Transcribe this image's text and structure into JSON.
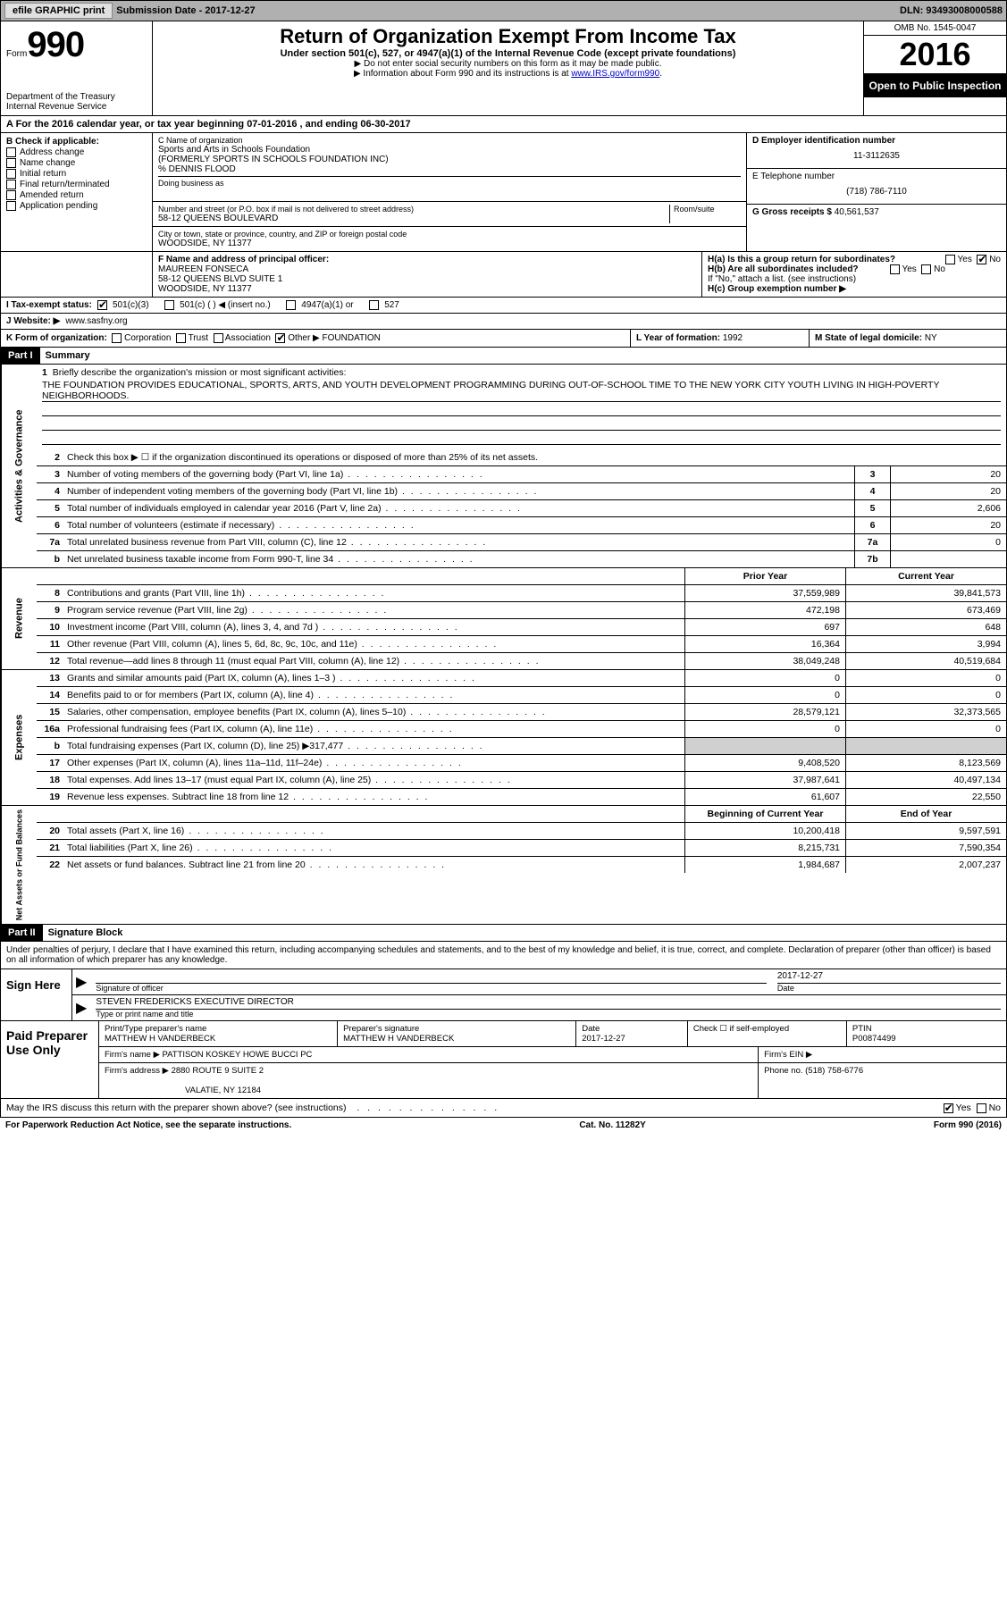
{
  "colors": {
    "topbar_bg": "#b0b0b0",
    "black": "#000000",
    "white": "#ffffff",
    "shade": "#d0d0d0",
    "link": "#0000cc"
  },
  "topbar": {
    "efile": "efile GRAPHIC print",
    "sub_label": "Submission Date - 2017-12-27",
    "dln": "DLN: 93493008000588"
  },
  "header": {
    "form_word": "Form",
    "form_no": "990",
    "dept": "Department of the Treasury",
    "irs": "Internal Revenue Service",
    "title": "Return of Organization Exempt From Income Tax",
    "subtitle": "Under section 501(c), 527, or 4947(a)(1) of the Internal Revenue Code (except private foundations)",
    "note1": "▶ Do not enter social security numbers on this form as it may be made public.",
    "note2": "▶ Information about Form 990 and its instructions is at ",
    "link": "www.IRS.gov/form990",
    "omb": "OMB No. 1545-0047",
    "year": "2016",
    "open": "Open to Public Inspection"
  },
  "section_a": "A  For the 2016 calendar year, or tax year beginning 07-01-2016  , and ending 06-30-2017",
  "col_b": {
    "label": "B Check if applicable:",
    "items": [
      "Address change",
      "Name change",
      "Initial return",
      "Final return/terminated",
      "Amended return",
      "Application pending"
    ]
  },
  "col_c": {
    "name_lbl": "C Name of organization",
    "name": "Sports and Arts in Schools Foundation",
    "formerly": "(FORMERLY SPORTS IN SCHOOLS FOUNDATION INC)",
    "co": "% DENNIS FLOOD",
    "dba_lbl": "Doing business as",
    "addr_lbl": "Number and street (or P.O. box if mail is not delivered to street address)",
    "room_lbl": "Room/suite",
    "addr": "58-12 QUEENS BOULEVARD",
    "city_lbl": "City or town, state or province, country, and ZIP or foreign postal code",
    "city": "WOODSIDE, NY  11377"
  },
  "col_d": {
    "ein_lbl": "D Employer identification number",
    "ein": "11-3112635",
    "tel_lbl": "E Telephone number",
    "tel": "(718) 786-7110",
    "gross_lbl": "G Gross receipts $",
    "gross": "40,561,537"
  },
  "row_f": {
    "lbl": "F Name and address of principal officer:",
    "name": "MAUREEN FONSECA",
    "addr": "58-12 QUEENS BLVD SUITE 1",
    "city": "WOODSIDE, NY  11377",
    "ha": "H(a)  Is this a group return for subordinates?",
    "hb": "H(b)  Are all subordinates included?",
    "hb_note": "If \"No,\" attach a list. (see instructions)",
    "hc": "H(c)  Group exemption number ▶",
    "yes": "Yes",
    "no": "No"
  },
  "row_i": {
    "lbl": "I  Tax-exempt status:",
    "c3": "501(c)(3)",
    "c": "501(c) (  ) ◀ (insert no.)",
    "a1": "4947(a)(1) or",
    "s527": "527"
  },
  "row_j": {
    "lbl": "J  Website: ▶",
    "val": "www.sasfny.org"
  },
  "row_k": {
    "lbl": "K Form of organization:",
    "corp": "Corporation",
    "trust": "Trust",
    "assoc": "Association",
    "other": "Other ▶",
    "other_val": "FOUNDATION",
    "l_lbl": "L Year of formation:",
    "l_val": "1992",
    "m_lbl": "M State of legal domicile:",
    "m_val": "NY"
  },
  "part1": {
    "hdr": "Part I",
    "title": "Summary"
  },
  "mission": {
    "n": "1",
    "lbl": "Briefly describe the organization's mission or most significant activities:",
    "text": "THE FOUNDATION PROVIDES EDUCATIONAL, SPORTS, ARTS, AND YOUTH DEVELOPMENT PROGRAMMING DURING OUT-OF-SCHOOL TIME TO THE NEW YORK CITY YOUTH LIVING IN HIGH-POVERTY NEIGHBORHOODS."
  },
  "gov_side": "Activities & Governance",
  "gov_lines": [
    {
      "n": "2",
      "t": "Check this box ▶ ☐  if the organization discontinued its operations or disposed of more than 25% of its net assets."
    },
    {
      "n": "3",
      "t": "Number of voting members of the governing body (Part VI, line 1a)",
      "ln": "3",
      "v": "20"
    },
    {
      "n": "4",
      "t": "Number of independent voting members of the governing body (Part VI, line 1b)",
      "ln": "4",
      "v": "20"
    },
    {
      "n": "5",
      "t": "Total number of individuals employed in calendar year 2016 (Part V, line 2a)",
      "ln": "5",
      "v": "2,606"
    },
    {
      "n": "6",
      "t": "Total number of volunteers (estimate if necessary)",
      "ln": "6",
      "v": "20"
    },
    {
      "n": "7a",
      "t": "Total unrelated business revenue from Part VIII, column (C), line 12",
      "ln": "7a",
      "v": "0"
    },
    {
      "n": "b",
      "t": "Net unrelated business taxable income from Form 990-T, line 34",
      "ln": "7b",
      "v": ""
    }
  ],
  "rev_side": "Revenue",
  "rev_hdr": {
    "py": "Prior Year",
    "cy": "Current Year"
  },
  "rev_lines": [
    {
      "n": "8",
      "t": "Contributions and grants (Part VIII, line 1h)",
      "py": "37,559,989",
      "cy": "39,841,573"
    },
    {
      "n": "9",
      "t": "Program service revenue (Part VIII, line 2g)",
      "py": "472,198",
      "cy": "673,469"
    },
    {
      "n": "10",
      "t": "Investment income (Part VIII, column (A), lines 3, 4, and 7d )",
      "py": "697",
      "cy": "648"
    },
    {
      "n": "11",
      "t": "Other revenue (Part VIII, column (A), lines 5, 6d, 8c, 9c, 10c, and 11e)",
      "py": "16,364",
      "cy": "3,994"
    },
    {
      "n": "12",
      "t": "Total revenue—add lines 8 through 11 (must equal Part VIII, column (A), line 12)",
      "py": "38,049,248",
      "cy": "40,519,684"
    }
  ],
  "exp_side": "Expenses",
  "exp_lines": [
    {
      "n": "13",
      "t": "Grants and similar amounts paid (Part IX, column (A), lines 1–3 )",
      "py": "0",
      "cy": "0"
    },
    {
      "n": "14",
      "t": "Benefits paid to or for members (Part IX, column (A), line 4)",
      "py": "0",
      "cy": "0"
    },
    {
      "n": "15",
      "t": "Salaries, other compensation, employee benefits (Part IX, column (A), lines 5–10)",
      "py": "28,579,121",
      "cy": "32,373,565"
    },
    {
      "n": "16a",
      "t": "Professional fundraising fees (Part IX, column (A), line 11e)",
      "py": "0",
      "cy": "0"
    },
    {
      "n": "b",
      "t": "Total fundraising expenses (Part IX, column (D), line 25) ▶317,477",
      "py": "shade",
      "cy": "shade"
    },
    {
      "n": "17",
      "t": "Other expenses (Part IX, column (A), lines 11a–11d, 11f–24e)",
      "py": "9,408,520",
      "cy": "8,123,569"
    },
    {
      "n": "18",
      "t": "Total expenses. Add lines 13–17 (must equal Part IX, column (A), line 25)",
      "py": "37,987,641",
      "cy": "40,497,134"
    },
    {
      "n": "19",
      "t": "Revenue less expenses. Subtract line 18 from line 12",
      "py": "61,607",
      "cy": "22,550"
    }
  ],
  "na_side": "Net Assets or Fund Balances",
  "na_hdr": {
    "py": "Beginning of Current Year",
    "cy": "End of Year"
  },
  "na_lines": [
    {
      "n": "20",
      "t": "Total assets (Part X, line 16)",
      "py": "10,200,418",
      "cy": "9,597,591"
    },
    {
      "n": "21",
      "t": "Total liabilities (Part X, line 26)",
      "py": "8,215,731",
      "cy": "7,590,354"
    },
    {
      "n": "22",
      "t": "Net assets or fund balances. Subtract line 21 from line 20",
      "py": "1,984,687",
      "cy": "2,007,237"
    }
  ],
  "part2": {
    "hdr": "Part II",
    "title": "Signature Block"
  },
  "penalty": "Under penalties of perjury, I declare that I have examined this return, including accompanying schedules and statements, and to the best of my knowledge and belief, it is true, correct, and complete. Declaration of preparer (other than officer) is based on all information of which preparer has any knowledge.",
  "sign": {
    "here": "Sign Here",
    "sig_lbl": "Signature of officer",
    "date_lbl": "Date",
    "date_val": "2017-12-27",
    "name_val": "STEVEN FREDERICKS EXECUTIVE DIRECTOR",
    "name_lbl": "Type or print name and title"
  },
  "prep": {
    "here": "Paid Preparer Use Only",
    "name_lbl": "Print/Type preparer's name",
    "name_val": "MATTHEW H VANDERBECK",
    "sig_lbl": "Preparer's signature",
    "sig_val": "MATTHEW H VANDERBECK",
    "date_lbl": "Date",
    "date_val": "2017-12-27",
    "check_lbl": "Check ☐ if self-employed",
    "ptin_lbl": "PTIN",
    "ptin_val": "P00874499",
    "firm_lbl": "Firm's name    ▶",
    "firm_val": "PATTISON KOSKEY HOWE BUCCI PC",
    "ein_lbl": "Firm's EIN ▶",
    "addr_lbl": "Firm's address ▶",
    "addr_val": "2880 ROUTE 9 SUITE 2",
    "addr_val2": "VALATIE, NY  12184",
    "phone_lbl": "Phone no.",
    "phone_val": "(518) 758-6776"
  },
  "discuss": {
    "t": "May the IRS discuss this return with the preparer shown above? (see instructions)",
    "yes": "Yes",
    "no": "No"
  },
  "footer": {
    "left": "For Paperwork Reduction Act Notice, see the separate instructions.",
    "mid": "Cat. No. 11282Y",
    "right": "Form 990 (2016)"
  }
}
